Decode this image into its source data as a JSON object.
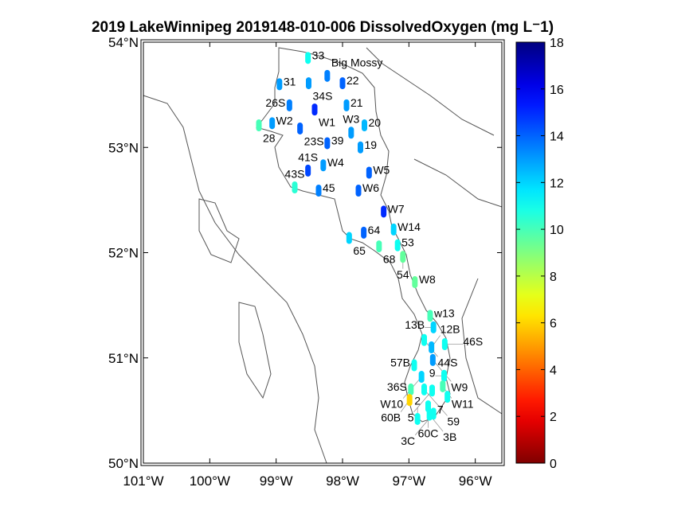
{
  "chart_data": {
    "type": "scatter",
    "title": "2019 LakeWinnipeg 2019148-010-006 DissolvedOxygen (mg L⁻1)",
    "xlim": [
      -101,
      -95.6
    ],
    "ylim": [
      50,
      54
    ],
    "x_ticks": [
      -101,
      -100,
      -99,
      -98,
      -97,
      -96
    ],
    "x_tick_labels": [
      "101°W",
      "100°W",
      "99°W",
      "98°W",
      "97°W",
      "96°W"
    ],
    "y_ticks": [
      50,
      51,
      52,
      53,
      54
    ],
    "y_tick_labels": [
      "50°N",
      "51°N",
      "52°N",
      "53°N",
      "54°N"
    ],
    "colorbar": {
      "min": 0,
      "max": 18,
      "ticks": [
        0,
        2,
        4,
        6,
        8,
        10,
        12,
        14,
        16,
        18
      ],
      "colormap": "jet-reversed",
      "placement": "right"
    },
    "grid": false,
    "points": [
      {
        "label": "33",
        "lon": -98.52,
        "lat": 53.85,
        "value": 11
      },
      {
        "label": "34S",
        "lon": -98.51,
        "lat": 53.61,
        "value": 13
      },
      {
        "label": "Big Mossy",
        "lon": -98.23,
        "lat": 53.68,
        "value": 13.5
      },
      {
        "label": "22",
        "lon": -98.0,
        "lat": 53.61,
        "value": 14
      },
      {
        "label": "31",
        "lon": -98.95,
        "lat": 53.6,
        "value": 13
      },
      {
        "label": "26S",
        "lon": -98.8,
        "lat": 53.4,
        "value": 13.5
      },
      {
        "label": "W1",
        "lon": -98.42,
        "lat": 53.36,
        "value": 15
      },
      {
        "label": "21",
        "lon": -97.94,
        "lat": 53.4,
        "value": 13
      },
      {
        "label": "W2",
        "lon": -99.06,
        "lat": 53.23,
        "value": 13
      },
      {
        "label": "28",
        "lon": -99.26,
        "lat": 53.21,
        "value": 10
      },
      {
        "label": "23S",
        "lon": -98.64,
        "lat": 53.18,
        "value": 14
      },
      {
        "label": "W3",
        "lon": -97.87,
        "lat": 53.14,
        "value": 13
      },
      {
        "label": "20",
        "lon": -97.67,
        "lat": 53.21,
        "value": 12.5
      },
      {
        "label": "39",
        "lon": -98.23,
        "lat": 53.04,
        "value": 14
      },
      {
        "label": "19",
        "lon": -97.73,
        "lat": 53.0,
        "value": 13
      },
      {
        "label": "W4",
        "lon": -98.29,
        "lat": 52.83,
        "value": 13
      },
      {
        "label": "41S",
        "lon": -98.52,
        "lat": 52.78,
        "value": 14.5
      },
      {
        "label": "W5",
        "lon": -97.6,
        "lat": 52.76,
        "value": 14
      },
      {
        "label": "43S",
        "lon": -98.72,
        "lat": 52.62,
        "value": 10.5
      },
      {
        "label": "45",
        "lon": -98.36,
        "lat": 52.59,
        "value": 13.5
      },
      {
        "label": "W6",
        "lon": -97.76,
        "lat": 52.59,
        "value": 14
      },
      {
        "label": "W7",
        "lon": -97.38,
        "lat": 52.39,
        "value": 15
      },
      {
        "label": "W14",
        "lon": -97.23,
        "lat": 52.22,
        "value": 12
      },
      {
        "label": "64",
        "lon": -97.68,
        "lat": 52.19,
        "value": 14
      },
      {
        "label": "65",
        "lon": -97.9,
        "lat": 52.14,
        "value": 12
      },
      {
        "label": "68",
        "lon": -97.45,
        "lat": 52.06,
        "value": 10
      },
      {
        "label": "53",
        "lon": -97.17,
        "lat": 52.07,
        "value": 11
      },
      {
        "label": "54",
        "lon": -97.09,
        "lat": 51.96,
        "value": 9.5
      },
      {
        "label": "W8",
        "lon": -96.91,
        "lat": 51.72,
        "value": 9.5
      },
      {
        "label": "w13",
        "lon": -96.68,
        "lat": 51.4,
        "value": 10
      },
      {
        "label": "13B",
        "lon": -96.63,
        "lat": 51.29,
        "value": 12
      },
      {
        "label": "44S",
        "lon": -96.77,
        "lat": 51.17,
        "value": 11
      },
      {
        "label": "12B",
        "lon": -96.66,
        "lat": 51.1,
        "value": 12.5
      },
      {
        "label": "46S",
        "lon": -96.46,
        "lat": 51.13,
        "value": 11
      },
      {
        "label": "W9",
        "lon": -96.64,
        "lat": 50.98,
        "value": 13
      },
      {
        "label": "57B",
        "lon": -96.92,
        "lat": 50.93,
        "value": 11
      },
      {
        "label": "W10",
        "lon": -96.81,
        "lat": 50.82,
        "value": 12
      },
      {
        "label": "9",
        "lon": -96.47,
        "lat": 50.83,
        "value": 11
      },
      {
        "label": "W11",
        "lon": -96.49,
        "lat": 50.73,
        "value": 10
      },
      {
        "label": "36S",
        "lon": -96.97,
        "lat": 50.7,
        "value": 10
      },
      {
        "label": "59",
        "lon": -96.77,
        "lat": 50.7,
        "value": 11
      },
      {
        "label": "5",
        "lon": -96.65,
        "lat": 50.69,
        "value": 11
      },
      {
        "label": "60B",
        "lon": -96.99,
        "lat": 50.6,
        "value": 6
      },
      {
        "label": "7",
        "lon": -96.42,
        "lat": 50.63,
        "value": 11
      },
      {
        "label": "60C",
        "lon": -96.71,
        "lat": 50.54,
        "value": 11
      },
      {
        "label": "3B",
        "lon": -96.69,
        "lat": 50.46,
        "value": 11
      },
      {
        "label": "3C",
        "lon": -96.63,
        "lat": 50.47,
        "value": 11
      },
      {
        "label": "2",
        "lon": -96.87,
        "lat": 50.42,
        "value": 11
      }
    ]
  }
}
